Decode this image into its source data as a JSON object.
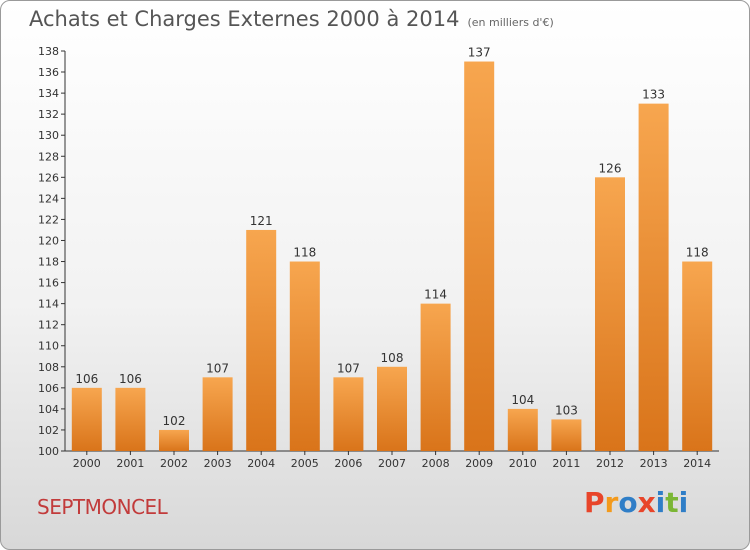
{
  "header": {
    "title": "Achats et Charges Externes 2000 à 2014",
    "unit": "(en milliers d'€)"
  },
  "footer": {
    "commune": "SEPTMONCEL",
    "logo_letters": [
      "P",
      "r",
      "o",
      "x",
      "i",
      "t",
      "i"
    ]
  },
  "colors": {
    "bar_top": "#f7a64f",
    "bar_bottom": "#d9741a",
    "commune_text": "#c23b3b",
    "logo": [
      "#e8452a",
      "#f39a1c",
      "#2f7ec7",
      "#e8452a",
      "#2f7ec7",
      "#7bb635",
      "#2f7ec7"
    ]
  },
  "chart_data": {
    "type": "bar",
    "title": "Achats et Charges Externes 2000 à 2014",
    "subtitle": "(en milliers d'€)",
    "categories": [
      "2000",
      "2001",
      "2002",
      "2003",
      "2004",
      "2005",
      "2006",
      "2007",
      "2008",
      "2009",
      "2010",
      "2011",
      "2012",
      "2013",
      "2014"
    ],
    "values": [
      106,
      106,
      102,
      107,
      121,
      118,
      107,
      108,
      114,
      137,
      104,
      103,
      126,
      133,
      118
    ],
    "ylim": [
      100,
      138
    ],
    "ytick_step": 2,
    "grid": false,
    "legend": "none"
  }
}
